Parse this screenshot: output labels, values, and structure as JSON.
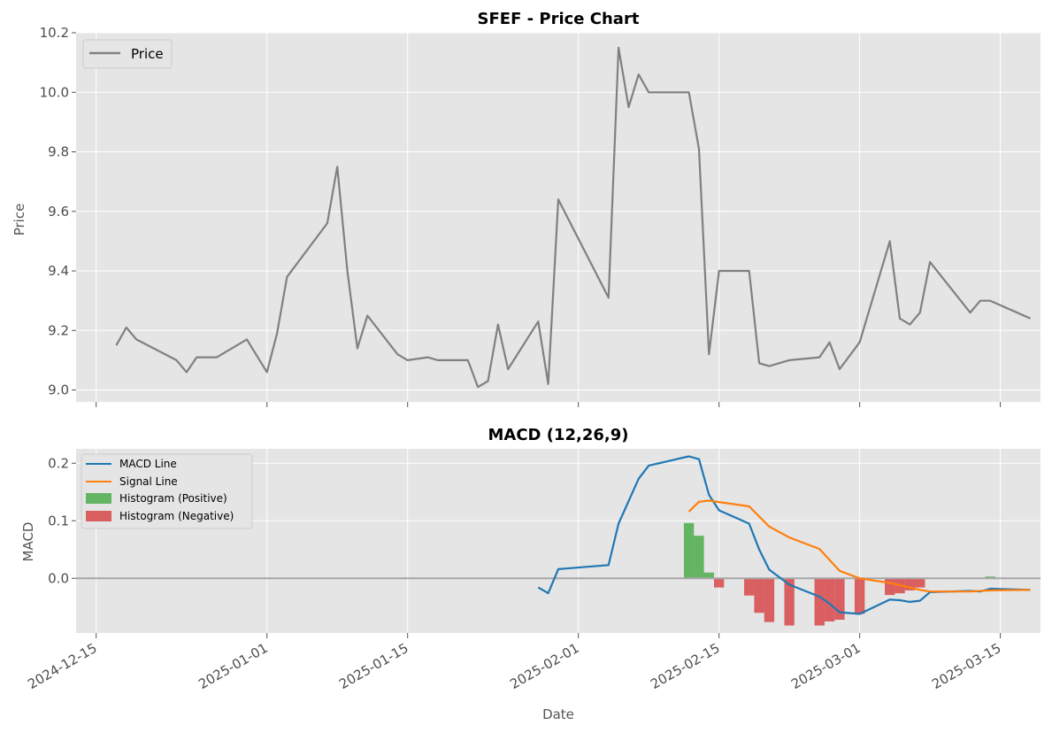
{
  "chart_data": [
    {
      "type": "line",
      "title": "SFEF - Price Chart",
      "ylabel": "Price",
      "xlabel": "",
      "xlim": [
        "2024-12-13",
        "2025-03-19"
      ],
      "ylim": [
        8.96,
        10.2
      ],
      "y_ticks": [
        "9.0",
        "9.2",
        "9.4",
        "9.6",
        "9.8",
        "10.0",
        "10.2"
      ],
      "grid": true,
      "legend": {
        "position": "top-left",
        "entries": [
          "Price"
        ]
      },
      "series": [
        {
          "name": "Price",
          "color": "#808080",
          "points": [
            [
              "2024-12-17",
              9.15
            ],
            [
              "2024-12-18",
              9.21
            ],
            [
              "2024-12-19",
              9.17
            ],
            [
              "2024-12-23",
              9.1
            ],
            [
              "2024-12-24",
              9.06
            ],
            [
              "2024-12-25",
              9.11
            ],
            [
              "2024-12-26",
              9.11
            ],
            [
              "2024-12-27",
              9.11
            ],
            [
              "2024-12-30",
              9.17
            ],
            [
              "2025-01-01",
              9.06
            ],
            [
              "2025-01-02",
              9.19
            ],
            [
              "2025-01-03",
              9.38
            ],
            [
              "2025-01-07",
              9.56
            ],
            [
              "2025-01-08",
              9.75
            ],
            [
              "2025-01-09",
              9.4
            ],
            [
              "2025-01-10",
              9.14
            ],
            [
              "2025-01-11",
              9.25
            ],
            [
              "2025-01-14",
              9.12
            ],
            [
              "2025-01-15",
              9.1
            ],
            [
              "2025-01-17",
              9.11
            ],
            [
              "2025-01-18",
              9.1
            ],
            [
              "2025-01-21",
              9.1
            ],
            [
              "2025-01-22",
              9.01
            ],
            [
              "2025-01-23",
              9.03
            ],
            [
              "2025-01-24",
              9.22
            ],
            [
              "2025-01-25",
              9.07
            ],
            [
              "2025-01-28",
              9.23
            ],
            [
              "2025-01-29",
              9.02
            ],
            [
              "2025-01-30",
              9.64
            ],
            [
              "2025-02-04",
              9.31
            ],
            [
              "2025-02-05",
              10.15
            ],
            [
              "2025-02-06",
              9.95
            ],
            [
              "2025-02-07",
              10.06
            ],
            [
              "2025-02-08",
              10.0
            ],
            [
              "2025-02-11",
              10.0
            ],
            [
              "2025-02-12",
              10.0
            ],
            [
              "2025-02-13",
              9.81
            ],
            [
              "2025-02-14",
              9.12
            ],
            [
              "2025-02-15",
              9.4
            ],
            [
              "2025-02-18",
              9.4
            ],
            [
              "2025-02-19",
              9.09
            ],
            [
              "2025-02-20",
              9.08
            ],
            [
              "2025-02-22",
              9.1
            ],
            [
              "2025-02-25",
              9.11
            ],
            [
              "2025-02-26",
              9.16
            ],
            [
              "2025-02-27",
              9.07
            ],
            [
              "2025-03-01",
              9.16
            ],
            [
              "2025-03-04",
              9.5
            ],
            [
              "2025-03-05",
              9.24
            ],
            [
              "2025-03-06",
              9.22
            ],
            [
              "2025-03-07",
              9.26
            ],
            [
              "2025-03-08",
              9.43
            ],
            [
              "2025-03-12",
              9.26
            ],
            [
              "2025-03-13",
              9.3
            ],
            [
              "2025-03-14",
              9.3
            ],
            [
              "2025-03-18",
              9.24
            ]
          ]
        }
      ]
    },
    {
      "type": "line",
      "title": "MACD (12,26,9)",
      "ylabel": "MACD",
      "xlabel": "Date",
      "xlim": [
        "2024-12-13",
        "2025-03-19"
      ],
      "ylim": [
        -0.095,
        0.225
      ],
      "y_ticks": [
        "0.0",
        "0.1",
        "0.2"
      ],
      "x_ticks": [
        "2024-12-15",
        "2025-01-01",
        "2025-01-15",
        "2025-02-01",
        "2025-02-15",
        "2025-03-01",
        "2025-03-15"
      ],
      "grid": true,
      "zero_line": true,
      "legend": {
        "position": "top-left",
        "entries": [
          "MACD Line",
          "Signal Line",
          "Histogram (Positive)",
          "Histogram (Negative)"
        ]
      },
      "series": [
        {
          "name": "MACD Line",
          "color": "#1f77b4",
          "points": [
            [
              "2025-01-28",
              -0.016
            ],
            [
              "2025-01-29",
              -0.026
            ],
            [
              "2025-01-30",
              0.016
            ],
            [
              "2025-02-04",
              0.023
            ],
            [
              "2025-02-05",
              0.095
            ],
            [
              "2025-02-07",
              0.173
            ],
            [
              "2025-02-08",
              0.196
            ],
            [
              "2025-02-12",
              0.212
            ],
            [
              "2025-02-13",
              0.207
            ],
            [
              "2025-02-14",
              0.145
            ],
            [
              "2025-02-15",
              0.118
            ],
            [
              "2025-02-18",
              0.095
            ],
            [
              "2025-02-19",
              0.05
            ],
            [
              "2025-02-20",
              0.015
            ],
            [
              "2025-02-22",
              -0.011
            ],
            [
              "2025-02-25",
              -0.032
            ],
            [
              "2025-02-26",
              -0.044
            ],
            [
              "2025-02-27",
              -0.059
            ],
            [
              "2025-03-01",
              -0.062
            ],
            [
              "2025-03-04",
              -0.037
            ],
            [
              "2025-03-05",
              -0.038
            ],
            [
              "2025-03-06",
              -0.041
            ],
            [
              "2025-03-07",
              -0.039
            ],
            [
              "2025-03-08",
              -0.024
            ],
            [
              "2025-03-12",
              -0.022
            ],
            [
              "2025-03-13",
              -0.023
            ],
            [
              "2025-03-14",
              -0.018
            ],
            [
              "2025-03-18",
              -0.02
            ]
          ]
        },
        {
          "name": "Signal Line",
          "color": "#ff7f0e",
          "points": [
            [
              "2025-02-12",
              0.116
            ],
            [
              "2025-02-13",
              0.133
            ],
            [
              "2025-02-14",
              0.135
            ],
            [
              "2025-02-18",
              0.125
            ],
            [
              "2025-02-20",
              0.09
            ],
            [
              "2025-02-22",
              0.071
            ],
            [
              "2025-02-25",
              0.051
            ],
            [
              "2025-02-27",
              0.013
            ],
            [
              "2025-03-01",
              0.0
            ],
            [
              "2025-03-04",
              -0.008
            ],
            [
              "2025-03-05",
              -0.012
            ],
            [
              "2025-03-07",
              -0.02
            ],
            [
              "2025-03-08",
              -0.023
            ],
            [
              "2025-03-12",
              -0.023
            ],
            [
              "2025-03-14",
              -0.021
            ],
            [
              "2025-03-18",
              -0.02
            ]
          ]
        },
        {
          "name": "Histogram (Positive)",
          "color": "#2ca02c",
          "bars": [
            [
              "2025-02-12",
              0.096
            ],
            [
              "2025-02-13",
              0.074
            ],
            [
              "2025-02-14",
              0.01
            ],
            [
              "2025-03-12",
              0.001
            ],
            [
              "2025-03-14",
              0.003
            ]
          ]
        },
        {
          "name": "Histogram (Negative)",
          "color": "#d62728",
          "bars": [
            [
              "2025-02-15",
              -0.016
            ],
            [
              "2025-02-18",
              -0.03
            ],
            [
              "2025-02-19",
              -0.06
            ],
            [
              "2025-02-20",
              -0.076
            ],
            [
              "2025-02-22",
              -0.082
            ],
            [
              "2025-02-25",
              -0.082
            ],
            [
              "2025-02-26",
              -0.075
            ],
            [
              "2025-02-27",
              -0.072
            ],
            [
              "2025-03-01",
              -0.062
            ],
            [
              "2025-03-04",
              -0.029
            ],
            [
              "2025-03-05",
              -0.026
            ],
            [
              "2025-03-06",
              -0.021
            ],
            [
              "2025-03-07",
              -0.016
            ]
          ]
        }
      ]
    }
  ]
}
